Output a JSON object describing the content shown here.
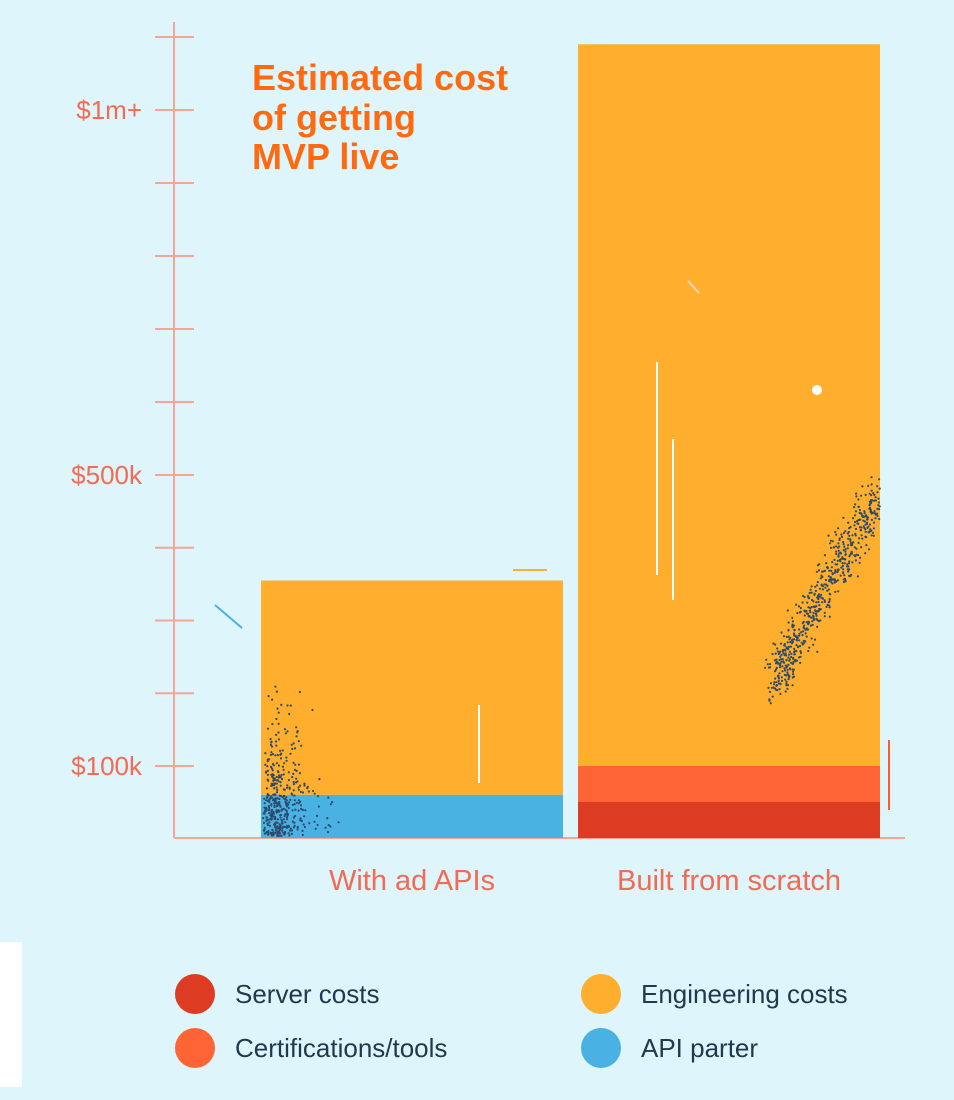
{
  "title_lines": [
    "Estimated cost",
    "of getting",
    "MVP live"
  ],
  "chart_data": {
    "type": "bar",
    "stacked": true,
    "title": "Estimated cost of getting MVP live",
    "categories": [
      "With ad APIs",
      "Built from scratch"
    ],
    "y_ticks": [
      {
        "value": 100000,
        "label": "$100k"
      },
      {
        "value": 500000,
        "label": "$500k"
      },
      {
        "value": 1000000,
        "label": "$1m+"
      }
    ],
    "ylim": [
      0,
      1100000
    ],
    "series": [
      {
        "name": "Server costs",
        "color": "#dd3c22",
        "values": [
          0,
          50000
        ]
      },
      {
        "name": "Certifications/tools",
        "color": "#ff6434",
        "values": [
          0,
          50000
        ]
      },
      {
        "name": "API parter",
        "color": "#49b2e3",
        "values": [
          60000,
          0
        ]
      },
      {
        "name": "Engineering costs",
        "color": "#ffae2e",
        "values": [
          295000,
          990000
        ]
      }
    ]
  },
  "legend": [
    {
      "label": "Server costs",
      "color": "#dd3c22"
    },
    {
      "label": "Engineering costs",
      "color": "#ffae2e"
    },
    {
      "label": "Certifications/tools",
      "color": "#ff6434"
    },
    {
      "label": "API parter",
      "color": "#49b2e3"
    }
  ]
}
